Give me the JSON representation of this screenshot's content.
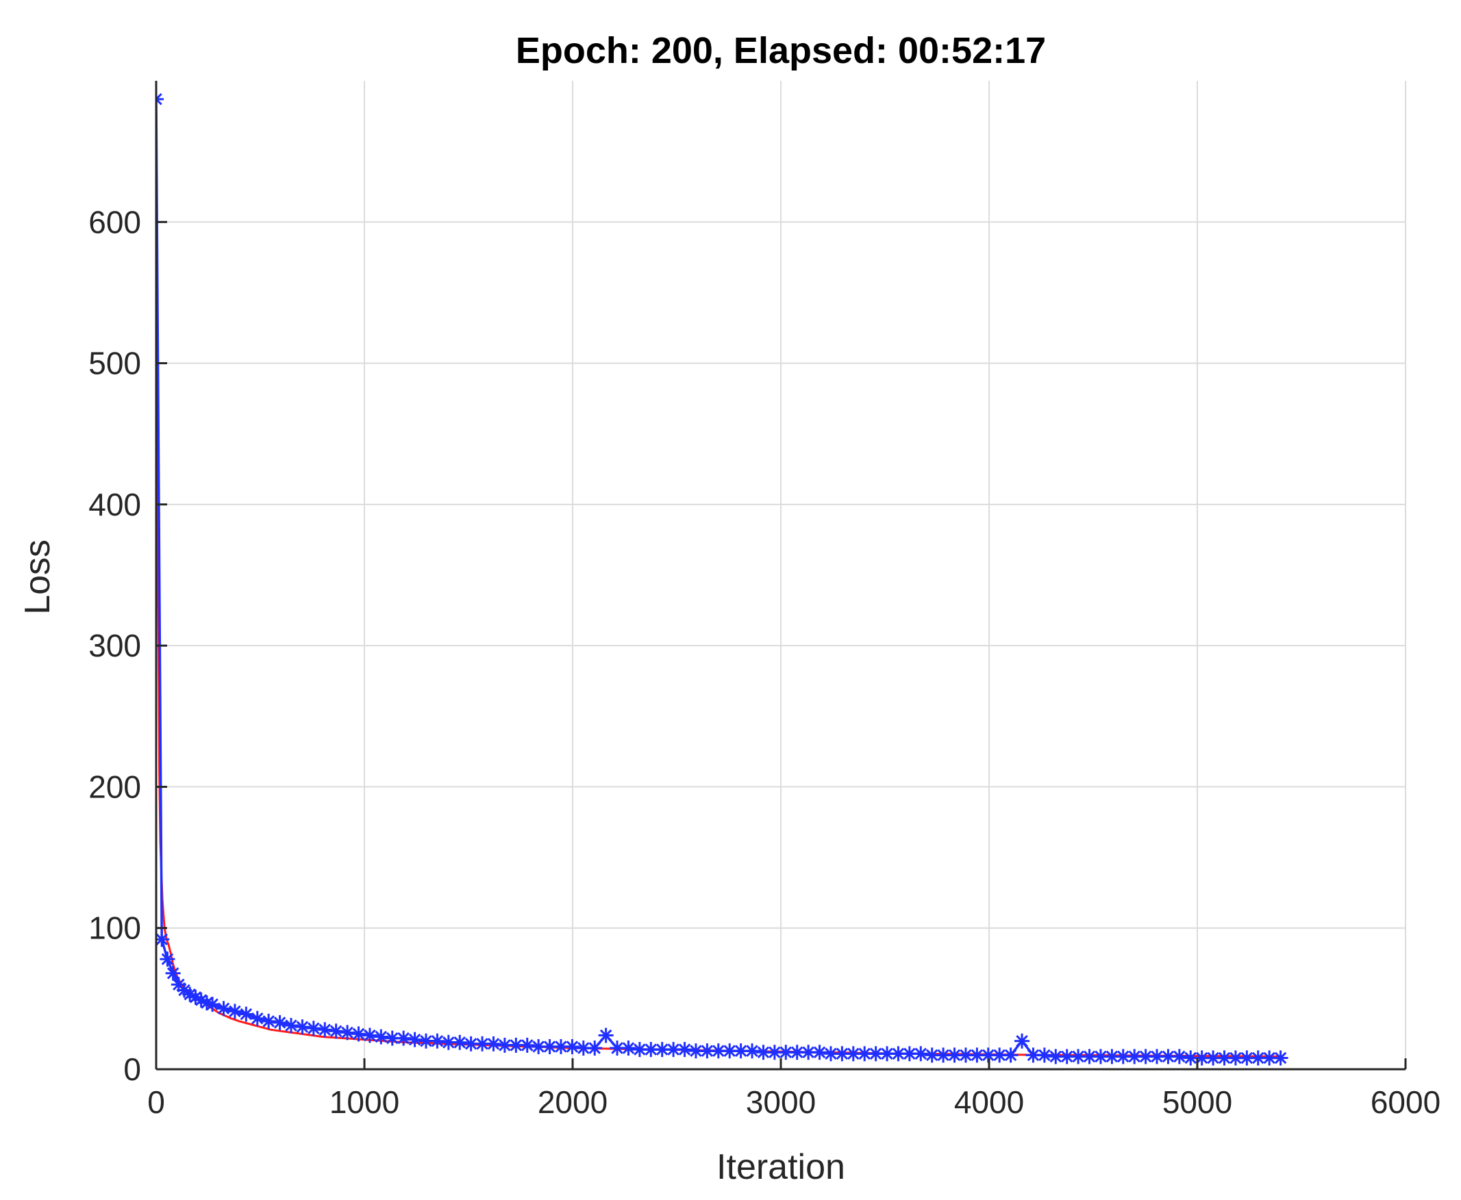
{
  "chart_data": {
    "type": "line",
    "title": "Epoch: 200, Elapsed: 00:52:17",
    "xlabel": "Iteration",
    "ylabel": "Loss",
    "xlim": [
      0,
      6000
    ],
    "ylim": [
      0,
      700
    ],
    "xticks": [
      0,
      1000,
      2000,
      3000,
      4000,
      5000,
      6000
    ],
    "yticks": [
      0,
      100,
      200,
      300,
      400,
      500,
      600
    ],
    "xtick_labels": [
      "0",
      "1000",
      "2000",
      "3000",
      "4000",
      "5000",
      "6000"
    ],
    "ytick_labels": [
      "0",
      "100",
      "200",
      "300",
      "400",
      "500",
      "600"
    ],
    "grid": true,
    "legend": "none",
    "colors": {
      "iteration_loss": "#ff1a1a",
      "epoch_loss": "#1f2fff",
      "grid": "#dcdcdc",
      "axis": "#262626"
    },
    "series": [
      {
        "style": "line",
        "color": "#ff1a1a",
        "x": [
          0,
          5,
          10,
          15,
          20,
          30,
          40,
          50,
          60,
          70,
          80,
          90,
          100,
          120,
          140,
          160,
          180,
          200,
          220,
          240,
          260,
          280,
          300,
          330,
          360,
          400,
          450,
          500,
          550,
          600,
          650,
          700,
          750,
          800,
          900,
          1000,
          1100,
          1200,
          1300,
          1400,
          1500,
          1600,
          1700,
          1800,
          1900,
          2000,
          2200,
          2400,
          2600,
          2800,
          3000,
          3200,
          3400,
          3600,
          3800,
          4000,
          4200,
          4400,
          4600,
          4800,
          5000,
          5200,
          5400
        ],
        "y": [
          690,
          520,
          330,
          210,
          160,
          120,
          100,
          92,
          88,
          82,
          75,
          70,
          66,
          60,
          57,
          54,
          52,
          50,
          48,
          46,
          44,
          42,
          40,
          38,
          36,
          34,
          32,
          30,
          28,
          27,
          26,
          25,
          24,
          23,
          22,
          21,
          20,
          19,
          18.5,
          18,
          17.5,
          17,
          16.5,
          16,
          15.5,
          15,
          14.5,
          14,
          13.5,
          13,
          12.5,
          12,
          11.5,
          11,
          10.8,
          10.5,
          10.2,
          10,
          9.8,
          9.6,
          9.4,
          9.2,
          9
        ]
      },
      {
        "style": "markers-line",
        "marker": "asterisk",
        "color": "#1f2fff",
        "x": [
          0,
          27,
          54,
          81,
          108,
          135,
          162,
          189,
          216,
          243,
          270,
          324,
          378,
          432,
          486,
          540,
          594,
          648,
          702,
          756,
          810,
          864,
          918,
          972,
          1026,
          1080,
          1134,
          1188,
          1242,
          1296,
          1350,
          1404,
          1458,
          1512,
          1566,
          1620,
          1674,
          1728,
          1782,
          1836,
          1890,
          1944,
          1998,
          2052,
          2106,
          2160,
          2214,
          2268,
          2322,
          2376,
          2430,
          2484,
          2538,
          2592,
          2646,
          2700,
          2754,
          2808,
          2862,
          2916,
          2970,
          3024,
          3078,
          3132,
          3186,
          3240,
          3294,
          3348,
          3402,
          3456,
          3510,
          3564,
          3618,
          3672,
          3726,
          3780,
          3834,
          3888,
          3942,
          3996,
          4050,
          4104,
          4158,
          4212,
          4266,
          4320,
          4374,
          4428,
          4482,
          4536,
          4590,
          4644,
          4698,
          4752,
          4806,
          4860,
          4914,
          4968,
          5022,
          5076,
          5130,
          5184,
          5238,
          5292,
          5346,
          5400
        ],
        "y": [
          687,
          92,
          78,
          68,
          60,
          56,
          53,
          51,
          49,
          47,
          46,
          43,
          41,
          39,
          36,
          34,
          33,
          31,
          30,
          29,
          28,
          27,
          26,
          25,
          24,
          23,
          22,
          22,
          21,
          20,
          20,
          19,
          19,
          18,
          18,
          18,
          17,
          17,
          17,
          16,
          16,
          16,
          16,
          15,
          15,
          24,
          15,
          15,
          14,
          14,
          14,
          14,
          14,
          13,
          13,
          13,
          13,
          13,
          13,
          12,
          12,
          12,
          12,
          12,
          12,
          11,
          11,
          11,
          11,
          11,
          11,
          11,
          11,
          11,
          10,
          10,
          10,
          10,
          10,
          10,
          10,
          10,
          20,
          10,
          10,
          9,
          9,
          9,
          9,
          9,
          9,
          9,
          9,
          9,
          9,
          9,
          9,
          8,
          8,
          8,
          8,
          8,
          8,
          8,
          8,
          8
        ]
      }
    ]
  }
}
